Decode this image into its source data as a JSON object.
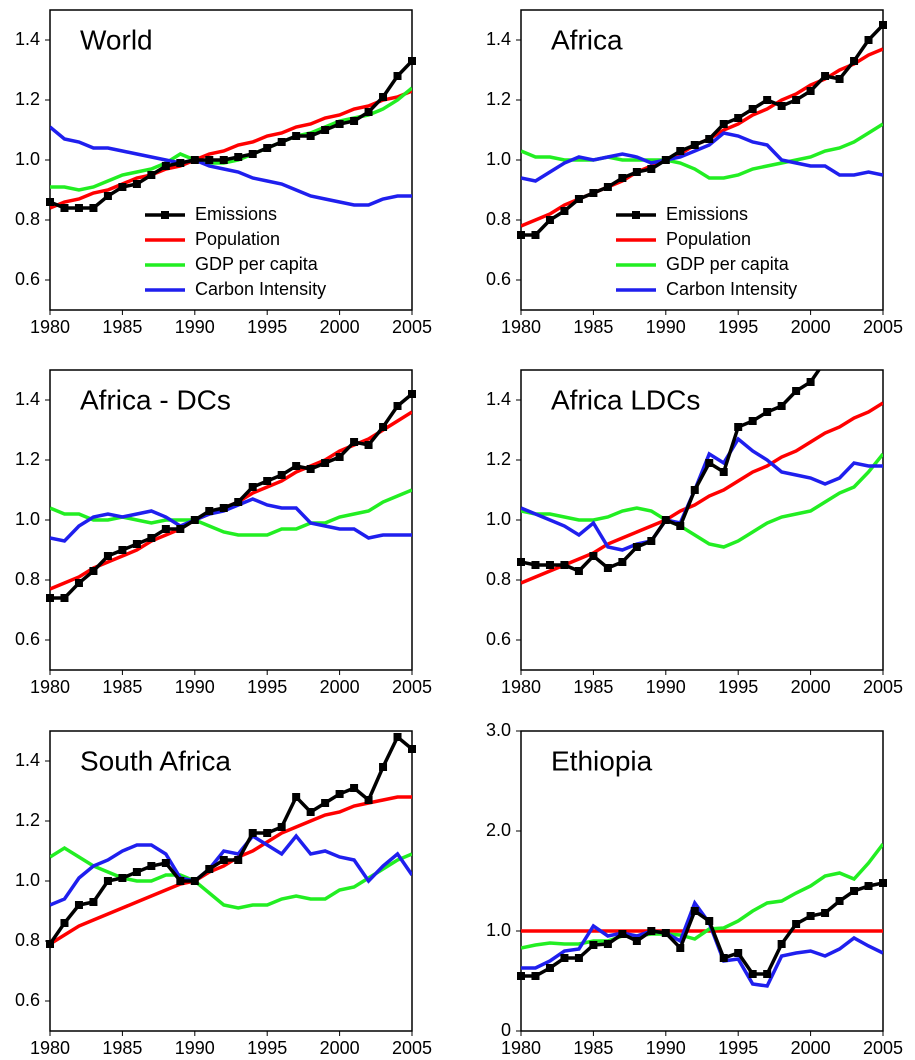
{
  "chart_data": [
    {
      "type": "line",
      "title": "World",
      "x": [
        1980,
        1981,
        1982,
        1983,
        1984,
        1985,
        1986,
        1987,
        1988,
        1989,
        1990,
        1991,
        1992,
        1993,
        1994,
        1995,
        1996,
        1997,
        1998,
        1999,
        2000,
        2001,
        2002,
        2003,
        2004,
        2005
      ],
      "xlim": [
        1980,
        2005
      ],
      "xticks": [
        1980,
        1985,
        1990,
        1995,
        2000,
        2005
      ],
      "ylim": [
        0.5,
        1.5
      ],
      "yticks": [
        0.6,
        0.8,
        {
          "value": 1,
          "label": "1.0"
        },
        1.2,
        1.4
      ],
      "legend": "lower right",
      "series": [
        {
          "name": "Emissions",
          "color": "#000000",
          "marker": "square",
          "values": [
            0.86,
            0.84,
            0.84,
            0.84,
            0.88,
            0.91,
            0.92,
            0.95,
            0.98,
            0.99,
            1.0,
            1.0,
            1.0,
            1.01,
            1.02,
            1.04,
            1.06,
            1.08,
            1.08,
            1.1,
            1.12,
            1.13,
            1.16,
            1.21,
            1.28,
            1.33
          ]
        },
        {
          "name": "Population",
          "color": "#ff0000",
          "values": [
            0.84,
            0.86,
            0.87,
            0.89,
            0.9,
            0.92,
            0.94,
            0.95,
            0.97,
            0.98,
            1.0,
            1.02,
            1.03,
            1.05,
            1.06,
            1.08,
            1.09,
            1.11,
            1.12,
            1.14,
            1.15,
            1.17,
            1.18,
            1.2,
            1.21,
            1.23
          ]
        },
        {
          "name": "GDP per capita",
          "color": "#22ee22",
          "values": [
            0.91,
            0.91,
            0.9,
            0.91,
            0.93,
            0.95,
            0.96,
            0.97,
            0.99,
            1.02,
            1.0,
            0.99,
            0.99,
            1.0,
            1.02,
            1.04,
            1.06,
            1.08,
            1.09,
            1.11,
            1.13,
            1.14,
            1.15,
            1.17,
            1.2,
            1.24
          ]
        },
        {
          "name": "Carbon Intensity",
          "color": "#1f1fee",
          "values": [
            1.11,
            1.07,
            1.06,
            1.04,
            1.04,
            1.03,
            1.02,
            1.01,
            1.0,
            0.99,
            1.0,
            0.98,
            0.97,
            0.96,
            0.94,
            0.93,
            0.92,
            0.9,
            0.88,
            0.87,
            0.86,
            0.85,
            0.85,
            0.87,
            0.88,
            0.88
          ]
        }
      ]
    },
    {
      "type": "line",
      "title": "Africa",
      "x": [
        1980,
        1981,
        1982,
        1983,
        1984,
        1985,
        1986,
        1987,
        1988,
        1989,
        1990,
        1991,
        1992,
        1993,
        1994,
        1995,
        1996,
        1997,
        1998,
        1999,
        2000,
        2001,
        2002,
        2003,
        2004,
        2005
      ],
      "xlim": [
        1980,
        2005
      ],
      "xticks": [
        1980,
        1985,
        1990,
        1995,
        2000,
        2005
      ],
      "ylim": [
        0.5,
        1.5
      ],
      "yticks": [
        0.6,
        0.8,
        {
          "value": 1,
          "label": "1.0"
        },
        1.2,
        1.4
      ],
      "legend": "lower right",
      "series": [
        {
          "name": "Emissions",
          "color": "#000000",
          "marker": "square",
          "values": [
            0.75,
            0.75,
            0.8,
            0.83,
            0.87,
            0.89,
            0.91,
            0.94,
            0.96,
            0.97,
            1.0,
            1.03,
            1.05,
            1.07,
            1.12,
            1.14,
            1.17,
            1.2,
            1.18,
            1.2,
            1.23,
            1.28,
            1.27,
            1.33,
            1.4,
            1.45
          ]
        },
        {
          "name": "Population",
          "color": "#ff0000",
          "values": [
            0.78,
            0.8,
            0.82,
            0.85,
            0.87,
            0.89,
            0.91,
            0.93,
            0.96,
            0.98,
            1.0,
            1.02,
            1.05,
            1.07,
            1.1,
            1.12,
            1.15,
            1.17,
            1.2,
            1.22,
            1.25,
            1.27,
            1.3,
            1.32,
            1.35,
            1.37
          ]
        },
        {
          "name": "GDP per capita",
          "color": "#22ee22",
          "values": [
            1.03,
            1.01,
            1.01,
            1.0,
            1.0,
            1.0,
            1.01,
            1.0,
            1.0,
            1.0,
            1.0,
            0.99,
            0.97,
            0.94,
            0.94,
            0.95,
            0.97,
            0.98,
            0.99,
            1.0,
            1.01,
            1.03,
            1.04,
            1.06,
            1.09,
            1.12
          ]
        },
        {
          "name": "Carbon Intensity",
          "color": "#1f1fee",
          "values": [
            0.94,
            0.93,
            0.96,
            0.99,
            1.01,
            1.0,
            1.01,
            1.02,
            1.01,
            0.99,
            1.0,
            1.01,
            1.03,
            1.05,
            1.09,
            1.08,
            1.06,
            1.05,
            1.0,
            0.99,
            0.98,
            0.98,
            0.95,
            0.95,
            0.96,
            0.95
          ]
        }
      ]
    },
    {
      "type": "line",
      "title": "Africa - DCs",
      "x": [
        1980,
        1981,
        1982,
        1983,
        1984,
        1985,
        1986,
        1987,
        1988,
        1989,
        1990,
        1991,
        1992,
        1993,
        1994,
        1995,
        1996,
        1997,
        1998,
        1999,
        2000,
        2001,
        2002,
        2003,
        2004,
        2005
      ],
      "xlim": [
        1980,
        2005
      ],
      "xticks": [
        1980,
        1985,
        1990,
        1995,
        2000,
        2005
      ],
      "ylim": [
        0.5,
        1.5
      ],
      "yticks": [
        0.6,
        0.8,
        {
          "value": 1,
          "label": "1.0"
        },
        1.2,
        1.4
      ],
      "series": [
        {
          "color": "#000000",
          "marker": "square",
          "values": [
            0.74,
            0.74,
            0.79,
            0.83,
            0.88,
            0.9,
            0.92,
            0.94,
            0.97,
            0.97,
            1.0,
            1.03,
            1.04,
            1.06,
            1.11,
            1.13,
            1.15,
            1.18,
            1.17,
            1.19,
            1.21,
            1.26,
            1.25,
            1.31,
            1.38,
            1.42
          ]
        },
        {
          "color": "#ff0000",
          "values": [
            0.77,
            0.79,
            0.81,
            0.84,
            0.86,
            0.88,
            0.9,
            0.93,
            0.95,
            0.97,
            1.0,
            1.02,
            1.04,
            1.06,
            1.09,
            1.11,
            1.13,
            1.16,
            1.18,
            1.2,
            1.23,
            1.25,
            1.27,
            1.3,
            1.33,
            1.36
          ]
        },
        {
          "color": "#22ee22",
          "values": [
            1.04,
            1.02,
            1.02,
            1.0,
            1.0,
            1.01,
            1.0,
            0.99,
            1.0,
            1.0,
            1.0,
            0.98,
            0.96,
            0.95,
            0.95,
            0.95,
            0.97,
            0.97,
            0.99,
            0.99,
            1.01,
            1.02,
            1.03,
            1.06,
            1.08,
            1.1
          ]
        },
        {
          "color": "#1f1fee",
          "values": [
            0.94,
            0.93,
            0.98,
            1.01,
            1.02,
            1.01,
            1.02,
            1.03,
            1.01,
            0.98,
            1.0,
            1.02,
            1.03,
            1.05,
            1.07,
            1.05,
            1.04,
            1.04,
            0.99,
            0.98,
            0.97,
            0.97,
            0.94,
            0.95,
            0.95,
            0.95
          ]
        }
      ]
    },
    {
      "type": "line",
      "title": "Africa LDCs",
      "x": [
        1980,
        1981,
        1982,
        1983,
        1984,
        1985,
        1986,
        1987,
        1988,
        1989,
        1990,
        1991,
        1992,
        1993,
        1994,
        1995,
        1996,
        1997,
        1998,
        1999,
        2000,
        2001,
        2002,
        2003,
        2004,
        2005
      ],
      "xlim": [
        1980,
        2005
      ],
      "xticks": [
        1980,
        1985,
        1990,
        1995,
        2000,
        2005
      ],
      "ylim": [
        0.5,
        1.5
      ],
      "yticks": [
        0.6,
        0.8,
        {
          "value": 1,
          "label": "1.0"
        },
        1.2,
        1.4
      ],
      "series": [
        {
          "color": "#000000",
          "marker": "square",
          "values": [
            0.86,
            0.85,
            0.85,
            0.85,
            0.83,
            0.88,
            0.84,
            0.86,
            0.91,
            0.93,
            1.0,
            0.98,
            1.1,
            1.19,
            1.16,
            1.31,
            1.33,
            1.36,
            1.38,
            1.43,
            1.46,
            1.53,
            null,
            null,
            null,
            null
          ]
        },
        {
          "color": "#ff0000",
          "values": [
            0.79,
            0.81,
            0.83,
            0.85,
            0.87,
            0.89,
            0.92,
            0.94,
            0.96,
            0.98,
            1.0,
            1.03,
            1.05,
            1.08,
            1.1,
            1.13,
            1.16,
            1.18,
            1.21,
            1.23,
            1.26,
            1.29,
            1.31,
            1.34,
            1.36,
            1.39
          ]
        },
        {
          "color": "#22ee22",
          "values": [
            1.03,
            1.02,
            1.02,
            1.01,
            1.0,
            1.0,
            1.01,
            1.03,
            1.04,
            1.03,
            1.0,
            0.98,
            0.95,
            0.92,
            0.91,
            0.93,
            0.96,
            0.99,
            1.01,
            1.02,
            1.03,
            1.06,
            1.09,
            1.11,
            1.16,
            1.22
          ]
        },
        {
          "color": "#1f1fee",
          "values": [
            1.04,
            1.02,
            1.0,
            0.98,
            0.95,
            0.99,
            0.91,
            0.9,
            0.92,
            0.93,
            1.0,
            0.99,
            1.1,
            1.22,
            1.19,
            1.27,
            1.23,
            1.2,
            1.16,
            1.15,
            1.14,
            1.12,
            1.14,
            1.19,
            1.18,
            1.18
          ]
        }
      ]
    },
    {
      "type": "line",
      "title": "South Africa",
      "x": [
        1980,
        1981,
        1982,
        1983,
        1984,
        1985,
        1986,
        1987,
        1988,
        1989,
        1990,
        1991,
        1992,
        1993,
        1994,
        1995,
        1996,
        1997,
        1998,
        1999,
        2000,
        2001,
        2002,
        2003,
        2004,
        2005
      ],
      "xlim": [
        1980,
        2005
      ],
      "xticks": [
        1980,
        1985,
        1990,
        1995,
        2000,
        2005
      ],
      "ylim": [
        0.5,
        1.5
      ],
      "yticks": [
        0.6,
        0.8,
        {
          "value": 1,
          "label": "1.0"
        },
        1.2,
        1.4
      ],
      "series": [
        {
          "color": "#000000",
          "marker": "square",
          "values": [
            0.79,
            0.86,
            0.92,
            0.93,
            1.0,
            1.01,
            1.03,
            1.05,
            1.06,
            1.0,
            1.0,
            1.04,
            1.07,
            1.07,
            1.16,
            1.16,
            1.18,
            1.28,
            1.23,
            1.26,
            1.29,
            1.31,
            1.27,
            1.38,
            1.48,
            1.44
          ]
        },
        {
          "color": "#ff0000",
          "values": [
            0.79,
            0.82,
            0.85,
            0.87,
            0.89,
            0.91,
            0.93,
            0.95,
            0.97,
            0.99,
            1.0,
            1.03,
            1.05,
            1.08,
            1.1,
            1.13,
            1.16,
            1.18,
            1.2,
            1.22,
            1.23,
            1.25,
            1.26,
            1.27,
            1.28,
            1.28
          ]
        },
        {
          "color": "#22ee22",
          "values": [
            1.08,
            1.11,
            1.08,
            1.05,
            1.03,
            1.01,
            1.0,
            1.0,
            1.02,
            1.02,
            1.0,
            0.96,
            0.92,
            0.91,
            0.92,
            0.92,
            0.94,
            0.95,
            0.94,
            0.94,
            0.97,
            0.98,
            1.01,
            1.04,
            1.07,
            1.09
          ]
        },
        {
          "color": "#1f1fee",
          "values": [
            0.92,
            0.94,
            1.01,
            1.05,
            1.07,
            1.1,
            1.12,
            1.12,
            1.09,
            1.01,
            1.0,
            1.04,
            1.1,
            1.09,
            1.15,
            1.12,
            1.09,
            1.15,
            1.09,
            1.1,
            1.08,
            1.07,
            1.0,
            1.05,
            1.09,
            1.02
          ]
        }
      ]
    },
    {
      "type": "line",
      "title": "Ethiopia",
      "x": [
        1980,
        1981,
        1982,
        1983,
        1984,
        1985,
        1986,
        1987,
        1988,
        1989,
        1990,
        1991,
        1992,
        1993,
        1994,
        1995,
        1996,
        1997,
        1998,
        1999,
        2000,
        2001,
        2002,
        2003,
        2004,
        2005
      ],
      "xlim": [
        1980,
        2005
      ],
      "xticks": [
        1980,
        1985,
        1990,
        1995,
        2000,
        2005
      ],
      "ylim": [
        0,
        3
      ],
      "yticks": [
        0,
        {
          "value": 1,
          "label": "1.0"
        },
        {
          "value": 2,
          "label": "2.0"
        },
        {
          "value": 3,
          "label": "3.0"
        }
      ],
      "series": [
        {
          "color": "#000000",
          "marker": "square",
          "values": [
            0.55,
            0.55,
            0.63,
            0.73,
            0.73,
            0.86,
            0.87,
            0.97,
            0.9,
            1.0,
            0.98,
            0.83,
            1.2,
            1.1,
            0.73,
            0.78,
            0.57,
            0.57,
            0.87,
            1.07,
            1.15,
            1.18,
            1.3,
            1.4,
            1.45,
            1.48
          ]
        },
        {
          "color": "#ff0000",
          "values": [
            1,
            1,
            1,
            1,
            1,
            1,
            1,
            1,
            1,
            1,
            1,
            1,
            1,
            1,
            1,
            1,
            1,
            1,
            1,
            1,
            1,
            1,
            1,
            1,
            1,
            1
          ]
        },
        {
          "color": "#22ee22",
          "values": [
            0.83,
            0.86,
            0.88,
            0.87,
            0.87,
            0.9,
            0.9,
            0.95,
            0.95,
            0.97,
            0.97,
            0.96,
            0.92,
            1.02,
            1.03,
            1.1,
            1.2,
            1.28,
            1.3,
            1.38,
            1.45,
            1.55,
            1.58,
            1.52,
            1.68,
            1.87
          ]
        },
        {
          "color": "#1f1fee",
          "values": [
            0.63,
            0.63,
            0.7,
            0.8,
            0.82,
            1.05,
            0.95,
            0.98,
            0.95,
            1.0,
            0.98,
            0.9,
            1.28,
            1.08,
            0.7,
            0.72,
            0.47,
            0.45,
            0.75,
            0.78,
            0.8,
            0.75,
            0.82,
            0.93,
            0.85,
            0.78
          ]
        }
      ]
    }
  ]
}
